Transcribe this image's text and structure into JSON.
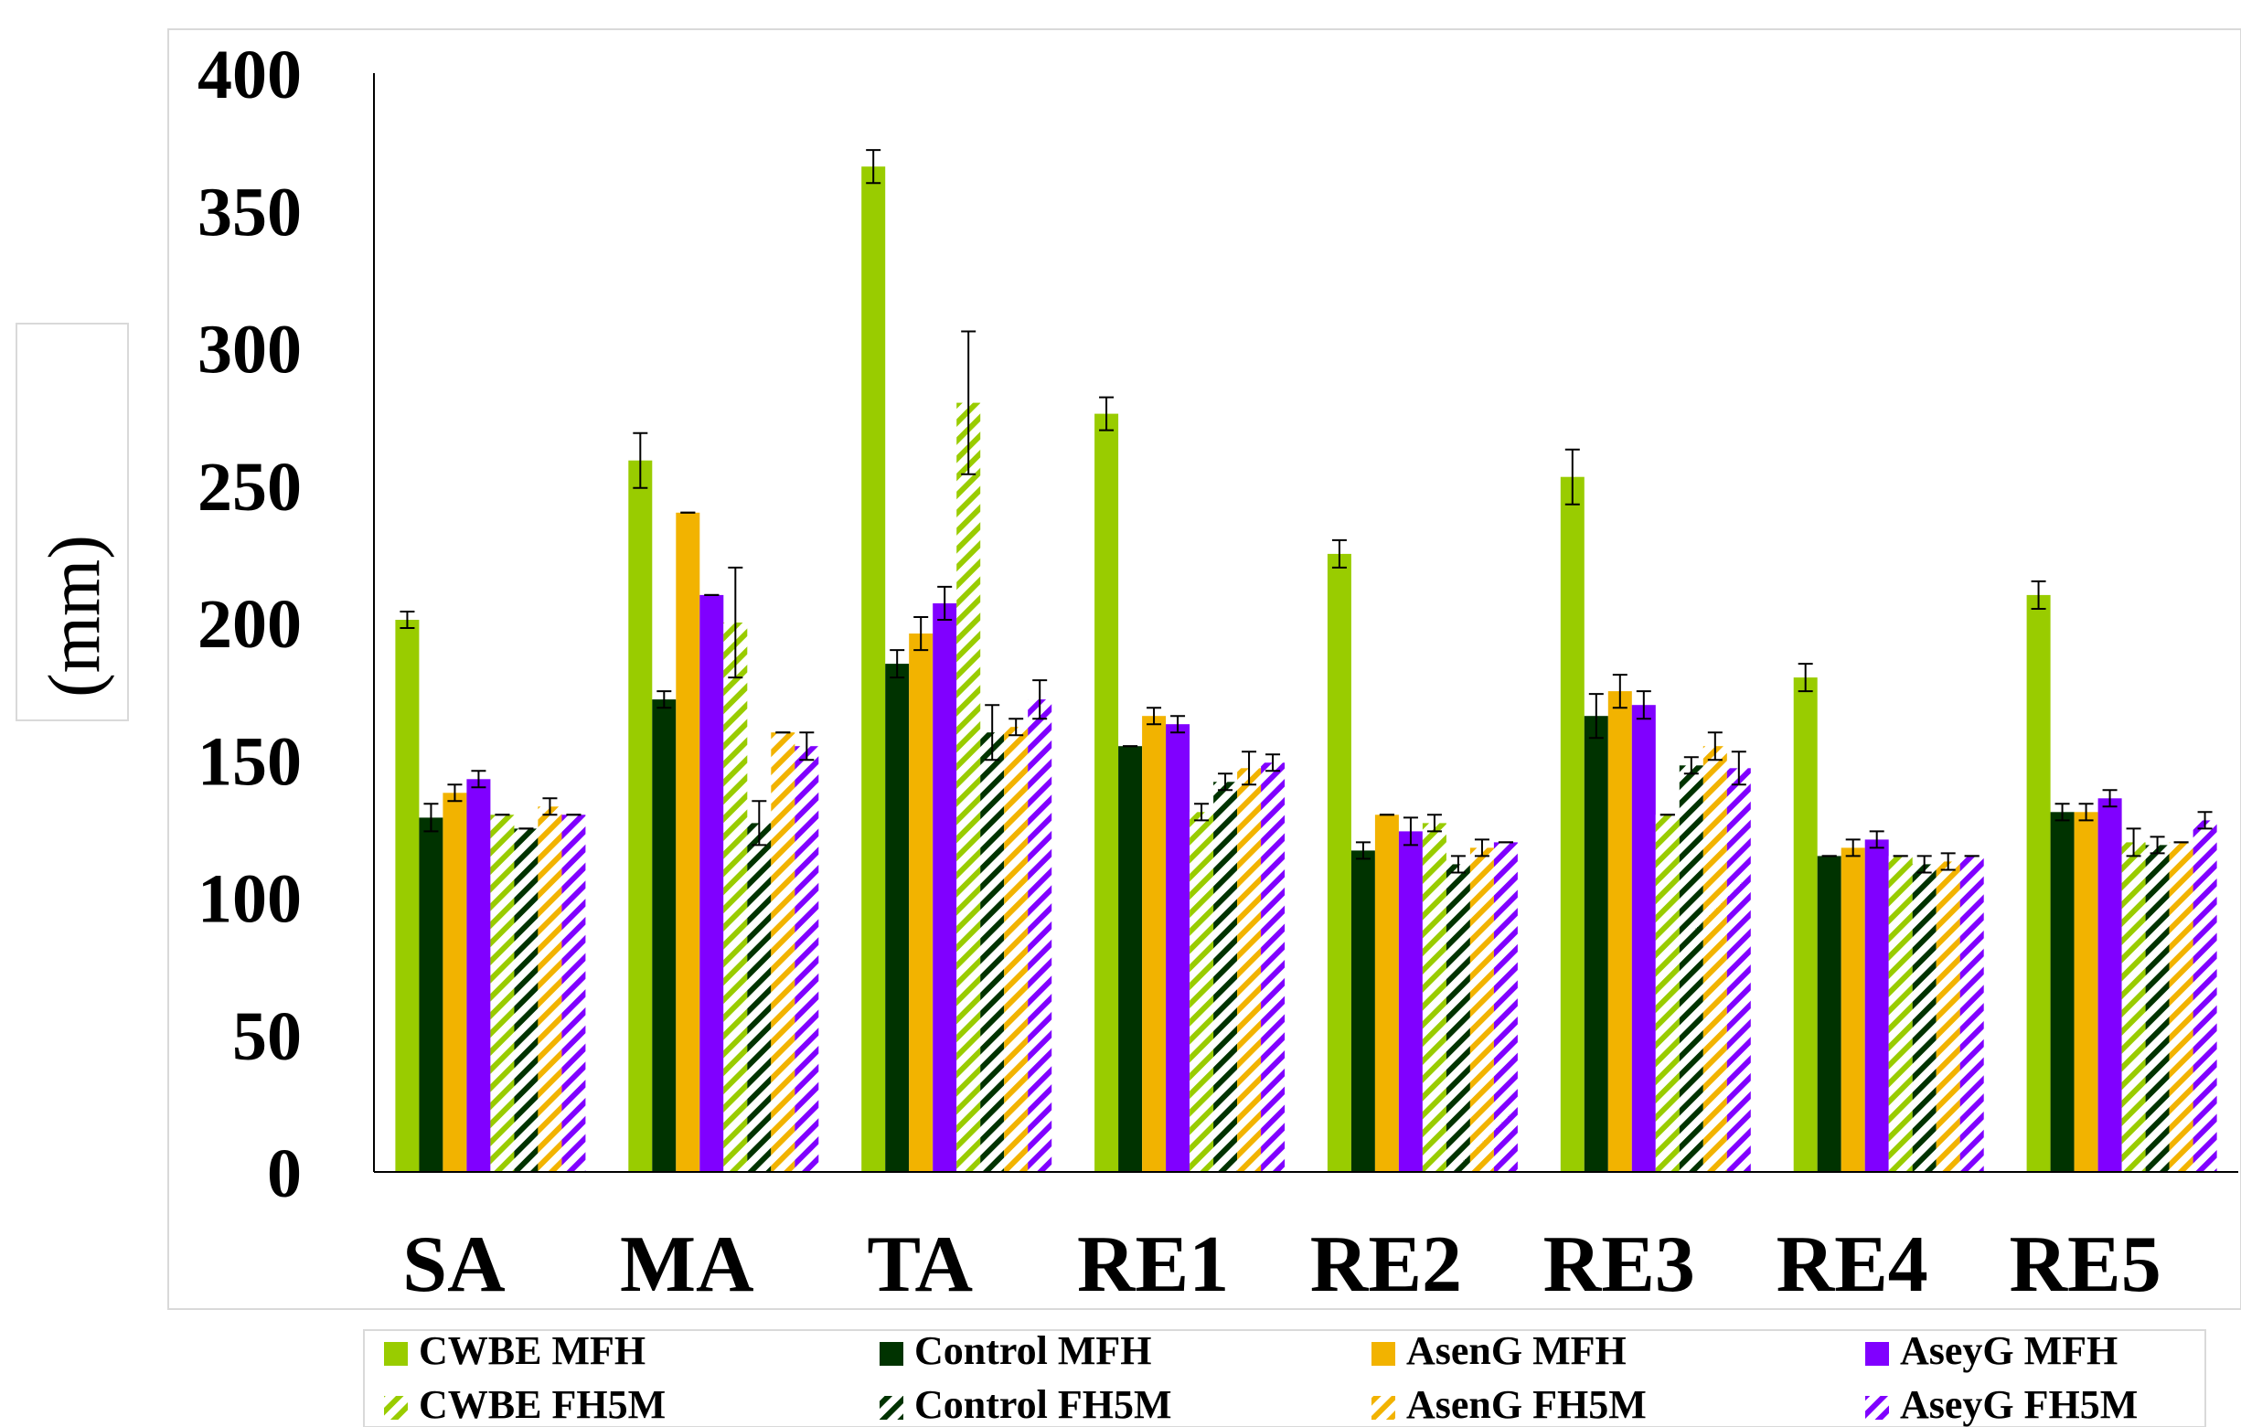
{
  "chart_data": {
    "type": "bar",
    "title": "",
    "xlabel": "",
    "ylabel": "(mm)",
    "ylim": [
      0,
      400
    ],
    "yticks": [
      0,
      50,
      100,
      150,
      200,
      250,
      300,
      350,
      400
    ],
    "grid": false,
    "legend_position": "bottom",
    "categories": [
      "SA",
      "MA",
      "TA",
      "RE1",
      "RE2",
      "RE3",
      "RE4",
      "RE5"
    ],
    "series": [
      {
        "name": "CWBE MFH",
        "color": "#99cc00",
        "pattern": "solid",
        "values": [
          201,
          259,
          366,
          276,
          225,
          253,
          180,
          210
        ],
        "errors": [
          3,
          10,
          6,
          6,
          5,
          10,
          5,
          5
        ]
      },
      {
        "name": "Control MFH",
        "color": "#003300",
        "pattern": "solid",
        "values": [
          129,
          172,
          185,
          155,
          117,
          166,
          115,
          131
        ],
        "errors": [
          5,
          3,
          5,
          0,
          3,
          8,
          0,
          3
        ]
      },
      {
        "name": "AsenG MFH",
        "color": "#f2b300",
        "pattern": "solid",
        "values": [
          138,
          240,
          196,
          166,
          130,
          175,
          118,
          131
        ],
        "errors": [
          3,
          0,
          6,
          3,
          0,
          6,
          3,
          3
        ]
      },
      {
        "name": "AseyG MFH",
        "color": "#8000ff",
        "pattern": "solid",
        "values": [
          143,
          210,
          207,
          163,
          124,
          170,
          121,
          136
        ],
        "errors": [
          3,
          0,
          6,
          3,
          5,
          5,
          3,
          3
        ]
      },
      {
        "name": "CWBE FH5M",
        "color": "#99cc00",
        "pattern": "hatch",
        "values": [
          130,
          200,
          280,
          131,
          127,
          130,
          115,
          120
        ],
        "errors": [
          0,
          20,
          26,
          3,
          3,
          0,
          0,
          5
        ]
      },
      {
        "name": "Control FH5M",
        "color": "#003300",
        "pattern": "hatch",
        "values": [
          125,
          127,
          160,
          142,
          112,
          148,
          112,
          119
        ],
        "errors": [
          0,
          8,
          10,
          3,
          3,
          3,
          3,
          3
        ]
      },
      {
        "name": "AsenG FH5M",
        "color": "#f2b300",
        "pattern": "hatch",
        "values": [
          133,
          160,
          162,
          147,
          118,
          155,
          113,
          120
        ],
        "errors": [
          3,
          0,
          3,
          6,
          3,
          5,
          3,
          0
        ]
      },
      {
        "name": "AseyG FH5M",
        "color": "#8000ff",
        "pattern": "hatch",
        "values": [
          130,
          155,
          172,
          149,
          120,
          147,
          115,
          128
        ],
        "errors": [
          0,
          5,
          7,
          3,
          0,
          6,
          0,
          3
        ]
      }
    ]
  }
}
